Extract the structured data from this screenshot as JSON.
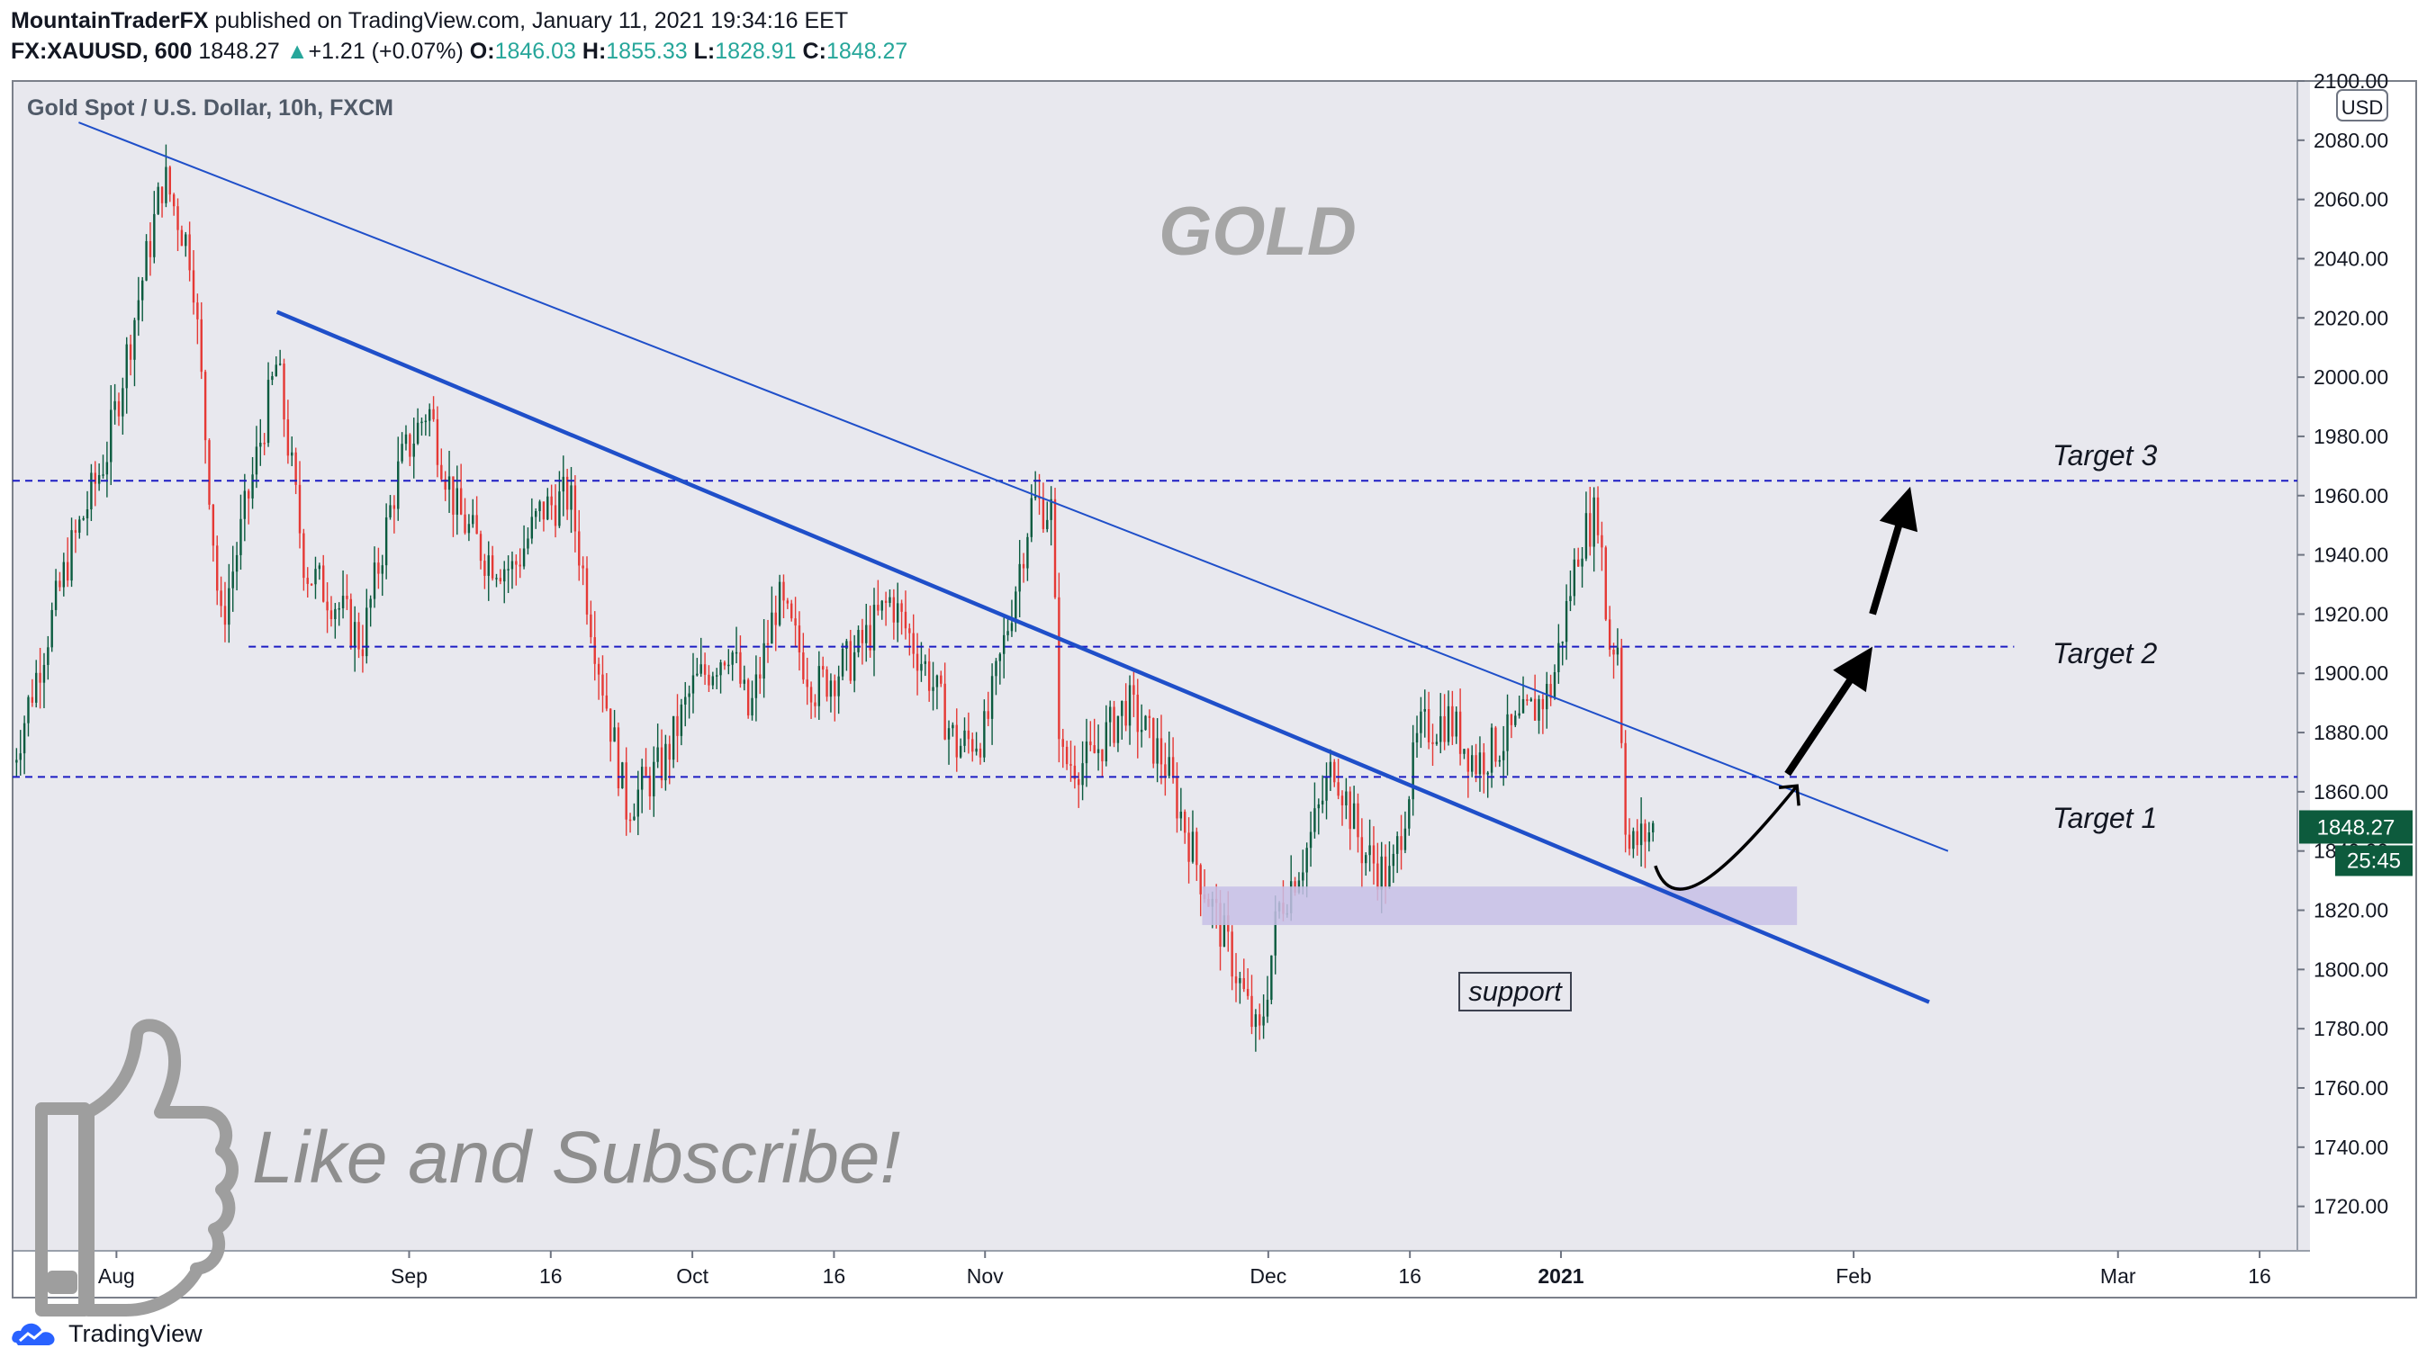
{
  "header": {
    "author": "MountainTraderFX",
    "published": "published on TradingView.com, January 11, 2021 19:34:16 EET",
    "symbol": "FX:XAUUSD, 600",
    "last": "1848.27",
    "change_arrow": "▲",
    "change": "+1.21 (+0.07%)",
    "o_label": "O:",
    "o": "1846.03",
    "h_label": "H:",
    "h": "1855.33",
    "l_label": "L:",
    "l": "1828.91",
    "c_label": "C:",
    "c": "1848.27"
  },
  "footer": {
    "brand": "TradingView",
    "logo_icon": "tradingview-logo-icon"
  },
  "colors": {
    "background": "#e8e8ee",
    "up": "#0b5b3f",
    "down": "#e53935",
    "trendline": "#1f4fc9",
    "dashed": "#1c1cc4",
    "support_zone": "#c7c0e6",
    "watermark": "#9e9e9e",
    "price_badge": "#0d5b3d"
  },
  "chart_data": {
    "type": "candlestick",
    "title": "Gold Spot / U.S. Dollar, 10h, FXCM",
    "watermark": "GOLD",
    "currency": "USD",
    "ylim": [
      1705,
      2100
    ],
    "y_ticks": [
      "2100.00",
      "2080.00",
      "2060.00",
      "2040.00",
      "2020.00",
      "2000.00",
      "1980.00",
      "1960.00",
      "1940.00",
      "1920.00",
      "1900.00",
      "1880.00",
      "1860.00",
      "1840.00",
      "1820.00",
      "1800.00",
      "1780.00",
      "1760.00",
      "1740.00",
      "1720.00"
    ],
    "x_ticks": [
      "Aug",
      "Sep",
      "16",
      "Oct",
      "16",
      "Nov",
      "Dec",
      "16",
      "2021",
      "Feb",
      "Mar",
      "16"
    ],
    "x_tick_dates": [
      "2020-08-01",
      "2020-09-01",
      "2020-09-16",
      "2020-10-01",
      "2020-10-16",
      "2020-11-01",
      "2020-12-01",
      "2020-12-16",
      "2021-01-01",
      "2021-02-01",
      "2021-03-01",
      "2021-03-16"
    ],
    "xlim": [
      "2020-07-21",
      "2021-03-20"
    ],
    "last_price": "1848.27",
    "countdown": "25:45",
    "waypoints": [
      [
        "2020-07-21",
        1870
      ],
      [
        "2020-07-27",
        1940
      ],
      [
        "2020-07-31",
        1975
      ],
      [
        "2020-08-06",
        2068
      ],
      [
        "2020-08-09",
        2040
      ],
      [
        "2020-08-12",
        1915
      ],
      [
        "2020-08-14",
        1945
      ],
      [
        "2020-08-18",
        2005
      ],
      [
        "2020-08-21",
        1935
      ],
      [
        "2020-08-24",
        1925
      ],
      [
        "2020-08-27",
        1910
      ],
      [
        "2020-08-31",
        1970
      ],
      [
        "2020-09-03",
        1990
      ],
      [
        "2020-09-06",
        1955
      ],
      [
        "2020-09-09",
        1940
      ],
      [
        "2020-09-12",
        1935
      ],
      [
        "2020-09-15",
        1955
      ],
      [
        "2020-09-18",
        1960
      ],
      [
        "2020-09-21",
        1905
      ],
      [
        "2020-09-24",
        1855
      ],
      [
        "2020-09-28",
        1870
      ],
      [
        "2020-10-01",
        1895
      ],
      [
        "2020-10-05",
        1910
      ],
      [
        "2020-10-07",
        1885
      ],
      [
        "2020-10-10",
        1925
      ],
      [
        "2020-10-14",
        1895
      ],
      [
        "2020-10-18",
        1905
      ],
      [
        "2020-10-22",
        1925
      ],
      [
        "2020-10-26",
        1900
      ],
      [
        "2020-10-29",
        1875
      ],
      [
        "2020-11-01",
        1880
      ],
      [
        "2020-11-03",
        1910
      ],
      [
        "2020-11-06",
        1958
      ],
      [
        "2020-11-08",
        1955
      ],
      [
        "2020-11-09",
        1870
      ],
      [
        "2020-11-12",
        1870
      ],
      [
        "2020-11-16",
        1890
      ],
      [
        "2020-11-20",
        1870
      ],
      [
        "2020-11-24",
        1830
      ],
      [
        "2020-11-27",
        1805
      ],
      [
        "2020-11-30",
        1775
      ],
      [
        "2020-12-02",
        1820
      ],
      [
        "2020-12-05",
        1840
      ],
      [
        "2020-12-08",
        1870
      ],
      [
        "2020-12-11",
        1840
      ],
      [
        "2020-12-14",
        1830
      ],
      [
        "2020-12-17",
        1880
      ],
      [
        "2020-12-20",
        1885
      ],
      [
        "2020-12-23",
        1870
      ],
      [
        "2020-12-27",
        1880
      ],
      [
        "2020-12-31",
        1895
      ],
      [
        "2021-01-03",
        1945
      ],
      [
        "2021-01-05",
        1955
      ],
      [
        "2021-01-06",
        1910
      ],
      [
        "2021-01-07",
        1910
      ],
      [
        "2021-01-08",
        1840
      ],
      [
        "2021-01-11",
        1848.27
      ]
    ]
  },
  "annotations": {
    "target1": "Target 1",
    "target2": "Target 2",
    "target3": "Target 3",
    "support": "support",
    "cta": "Like and Subscribe!",
    "thumbs_icon": "thumbs-up-icon",
    "levels": {
      "target1": 1865,
      "target2": 1909,
      "target3": 1965
    },
    "support_zone": {
      "from": "2020-11-24",
      "to": "2021-01-26",
      "low": 1815,
      "high": 1828
    },
    "trendline_upper": [
      [
        "2020-07-28",
        2086
      ],
      [
        "2021-02-11",
        1840
      ]
    ],
    "trendline_lower": [
      [
        "2020-08-18",
        2022
      ],
      [
        "2021-02-09",
        1789
      ]
    ],
    "curve_arrow": [
      [
        "2021-01-11",
        1835
      ],
      [
        "2021-01-26",
        1862
      ]
    ],
    "arrow_big1": [
      [
        "2021-01-25",
        1866
      ],
      [
        "2021-02-03",
        1909
      ]
    ],
    "arrow_big2": [
      [
        "2021-02-03",
        1920
      ],
      [
        "2021-02-07",
        1963
      ]
    ]
  }
}
